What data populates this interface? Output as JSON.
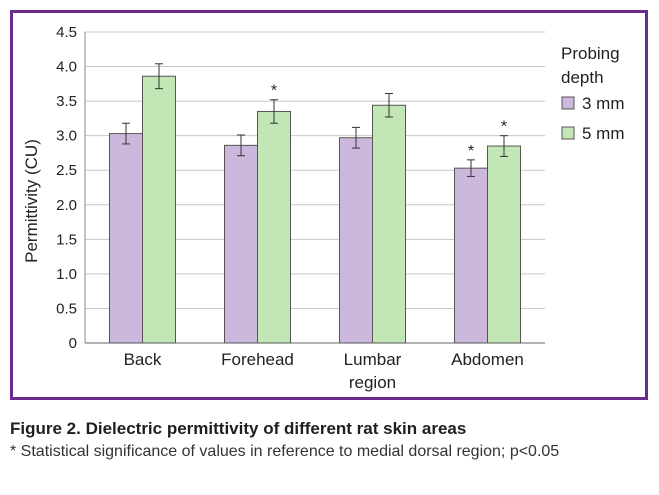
{
  "chart_data": {
    "type": "bar",
    "title": "",
    "xlabel": "",
    "ylabel": "Permittivity (CU)",
    "ylim": [
      0,
      4.5
    ],
    "yticks": [
      "0",
      "0.5",
      "1.0",
      "1.5",
      "2.0",
      "2.5",
      "3.0",
      "3.5",
      "4.0",
      "4.5"
    ],
    "grid": true,
    "legend_title": "Probing depth",
    "legend_position": "right",
    "categories": [
      [
        "Back"
      ],
      [
        "Forehead"
      ],
      [
        "Lumbar",
        "region"
      ],
      [
        "Abdomen"
      ]
    ],
    "series": [
      {
        "name": "3 mm",
        "color": "#ccb8dd",
        "values": [
          3.03,
          2.86,
          2.97,
          2.53
        ],
        "errors": [
          0.15,
          0.15,
          0.15,
          0.12
        ],
        "significant": [
          false,
          false,
          false,
          true
        ]
      },
      {
        "name": "5 mm",
        "color": "#c2e6b5",
        "values": [
          3.86,
          3.35,
          3.44,
          2.85
        ],
        "errors": [
          0.18,
          0.17,
          0.17,
          0.15
        ],
        "significant": [
          false,
          true,
          false,
          true
        ]
      }
    ],
    "significance_marker": "*"
  },
  "caption": {
    "title": "Figure 2. Dielectric permittivity of different rat skin areas",
    "note": "* Statistical significance of values in reference to medial dorsal region; p<0.05"
  }
}
